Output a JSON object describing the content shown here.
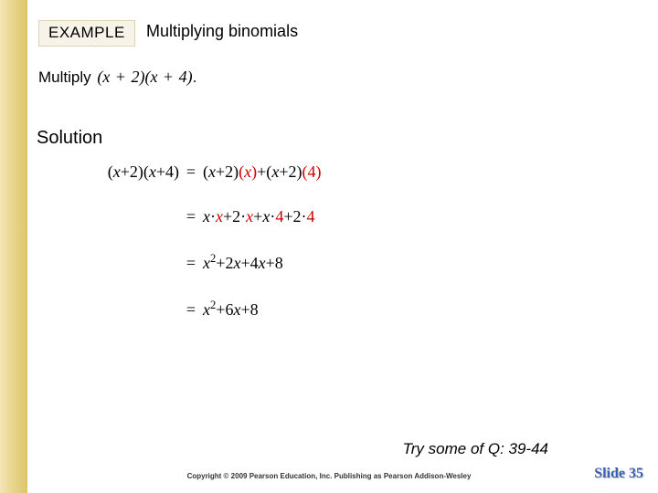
{
  "colors": {
    "background": "#ffffff",
    "gold_bar_gradient": [
      "#f4e4b8",
      "#e8d48a",
      "#ddc66e"
    ],
    "badge_bg": "#f7f3e8",
    "badge_border": "#ddd3b8",
    "text": "#000000",
    "red": "#cc0000",
    "slidenum": "#3b5fb5",
    "slidenum_shadow": "#c6c6c6"
  },
  "fonts": {
    "body_family": "Arial",
    "math_family": "Times New Roman",
    "badge_size_pt": 13,
    "title_size_pt": 13,
    "heading_size_pt": 15,
    "math_size_pt": 13,
    "try_size_pt": 13,
    "copyright_size_pt": 6,
    "slidenum_size_pt": 12
  },
  "badge": {
    "label": "EXAMPLE"
  },
  "title": "Multiplying binomials",
  "problem": {
    "verb": "Multiply",
    "expr_html": "(<span class='it'>x</span> <span class='op'>+</span> 2)(<span class='it'>x</span> <span class='op'>+</span> 4)",
    "period": "."
  },
  "solution_heading": "Solution",
  "work": {
    "lines": [
      {
        "lhs_html": "<span class='up'>(</span><span class='it'>x</span><span class='up'>+2)(</span><span class='it'>x</span><span class='up'>+4)</span>",
        "rhs_html": "<span class='up'>(</span><span class='it'>x</span><span class='up'>+2)</span><span class='red up'>(</span><span class='red it'>x</span><span class='red up'>)</span><span class='up'>+(</span><span class='it'>x</span><span class='up'>+2)</span><span class='red up'>(4)</span>"
      },
      {
        "lhs_html": "",
        "rhs_html": "<span class='it'>x</span><span class='up'>·</span><span class='red it'>x</span><span class='up'>+2·</span><span class='red it'>x</span><span class='up'>+</span><span class='it'>x</span><span class='up'>·</span><span class='red up'>4</span><span class='up'>+2·</span><span class='red up'>4</span>"
      },
      {
        "lhs_html": "",
        "rhs_html": "<span class='it'>x</span><sup>2</sup><span class='up'>+2</span><span class='it'>x</span><span class='up'>+4</span><span class='it'>x</span><span class='up'>+8</span>"
      },
      {
        "lhs_html": "",
        "rhs_html": "<span class='it'>x</span><sup>2</sup><span class='up'>+6</span><span class='it'>x</span><span class='up'>+8</span>"
      }
    ]
  },
  "try": "Try some of Q: 39-44",
  "copyright": "Copyright © 2009 Pearson Education, Inc.  Publishing as Pearson Addison-Wesley",
  "slidenum": "Slide 35"
}
